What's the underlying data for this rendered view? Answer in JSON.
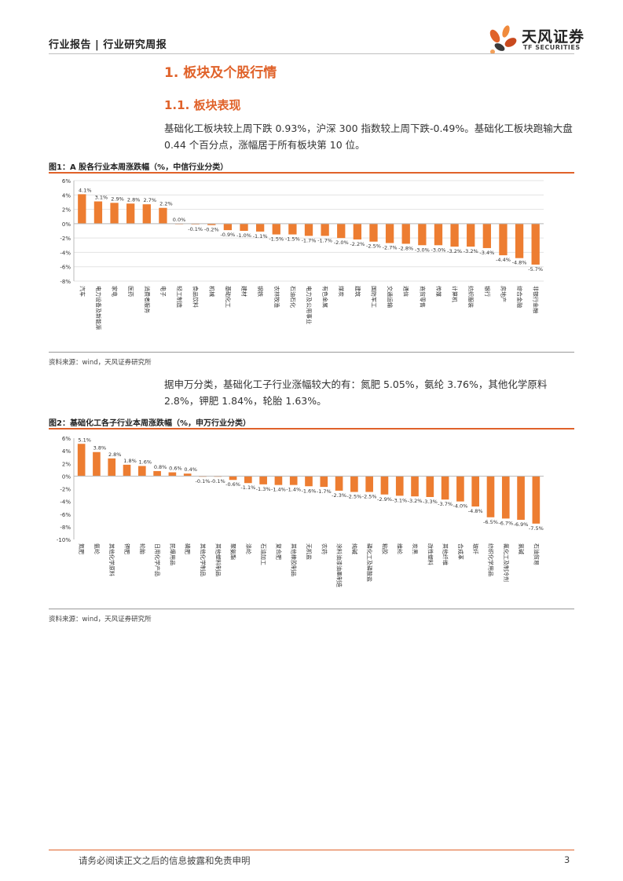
{
  "header": {
    "title": "行业报告 | 行业研究周报",
    "logo_cn": "天风证券",
    "logo_en": "TF SECURITIES"
  },
  "section": {
    "h1": "1. 板块及个股行情",
    "h2": "1.1. 板块表现"
  },
  "paragraphs": {
    "p1": "基础化工板块较上周下跌 0.93%，沪深 300 指数较上周下跌-0.49%。基础化工板块跑输大盘 0.44 个百分点，涨幅居于所有板块第 10 位。",
    "p2": "据申万分类，基础化工子行业涨幅较大的有：氮肥 5.05%，氨纶 3.76%，其他化学原料 2.8%，钾肥 1.84%，轮胎 1.63%。"
  },
  "figures": {
    "fig1_title": "图1：A 股各行业本周涨跌幅（%，中信行业分类）",
    "fig1_source": "资料来源：wind，天风证券研究所",
    "fig2_title": "图2：基础化工各子行业本周涨跌幅（%，申万行业分类）",
    "fig2_source": "资料来源：wind，天风证券研究所"
  },
  "footer": {
    "disclaimer": "请务必阅读正文之后的信息披露和免责申明",
    "page": "3"
  },
  "colors": {
    "accent": "#e0622a",
    "bar": "#ed7d31"
  },
  "chart_data": [
    {
      "type": "bar",
      "ylim": [
        -8,
        6
      ],
      "yticks": [
        "6%",
        "4%",
        "2%",
        "0%",
        "-2%",
        "-4%",
        "-6%",
        "-8%"
      ],
      "grid": true,
      "categories": [
        "汽车",
        "电力设备及新能源",
        "家电",
        "医药",
        "消费者服务",
        "电子",
        "轻工制造",
        "食品饮料",
        "机械",
        "基础化工",
        "建材",
        "钢铁",
        "农林牧渔",
        "石油石化",
        "电力及公用事业",
        "有色金属",
        "煤炭",
        "建筑",
        "国防军工",
        "交通运输",
        "通信",
        "商贸零售",
        "传媒",
        "计算机",
        "纺织服装",
        "银行",
        "房地产",
        "综合金融",
        "非银行金融"
      ],
      "values": [
        4.1,
        3.1,
        2.9,
        2.8,
        2.7,
        2.2,
        0.0,
        -0.1,
        -0.2,
        -0.9,
        -1.0,
        -1.1,
        -1.5,
        -1.5,
        -1.7,
        -1.7,
        -2.0,
        -2.2,
        -2.5,
        -2.7,
        -2.8,
        -3.0,
        -3.0,
        -3.2,
        -3.2,
        -3.4,
        -4.4,
        -4.8,
        -5.7
      ],
      "labels": [
        "4.1%",
        "3.1%",
        "2.9%",
        "2.8%",
        "2.7%",
        "2.2%",
        "0.0%",
        "-0.1%",
        "-0.2%",
        "-0.9%",
        "-1.0%",
        "-1.1%",
        "-1.5%",
        "-1.5%",
        "-1.7%",
        "-1.7%",
        "-2.0%",
        "-2.2%",
        "-2.5%",
        "-2.7%",
        "-2.8%",
        "-3.0%",
        "-3.0%",
        "-3.2%",
        "-3.2%",
        "-3.4%",
        "-4.4%",
        "-4.8%",
        "-5.7%"
      ]
    },
    {
      "type": "bar",
      "ylim": [
        -10,
        6
      ],
      "yticks": [
        "6%",
        "4%",
        "2%",
        "0%",
        "-2%",
        "-4%",
        "-6%",
        "-8%",
        "-10%"
      ],
      "grid": false,
      "categories": [
        "氮肥",
        "氨纶",
        "其他化学原料",
        "钾肥",
        "轮胎",
        "日用化学产品",
        "民爆用品",
        "磷肥",
        "其他化学制品",
        "其他塑料制品",
        "聚氨酯",
        "涤纶",
        "石油加工",
        "复合肥",
        "其他橡胶制品",
        "无机盐",
        "农药",
        "涂料油漆油墨制造",
        "纯碱",
        "磷化工及磷酸盐",
        "粘胶",
        "维纶",
        "炭黑",
        "改性塑料",
        "其他纤维",
        "合成革",
        "玻纤",
        "纺织化学用品",
        "氟化工及制冷剂",
        "氯碱",
        "石油贸易"
      ],
      "values": [
        5.1,
        3.8,
        2.8,
        1.8,
        1.6,
        0.8,
        0.6,
        0.4,
        -0.1,
        -0.1,
        -0.6,
        -1.1,
        -1.3,
        -1.4,
        -1.4,
        -1.6,
        -1.7,
        -2.3,
        -2.5,
        -2.5,
        -2.9,
        -3.1,
        -3.2,
        -3.3,
        -3.7,
        -4.0,
        -4.8,
        -6.5,
        -6.7,
        -6.9,
        -7.5
      ],
      "labels": [
        "5.1%",
        "3.8%",
        "2.8%",
        "1.8%",
        "1.6%",
        "0.8%",
        "0.6%",
        "0.4%",
        "-0.1%",
        "-0.1%",
        "-0.6%",
        "-1.1%",
        "-1.3%",
        "-1.4%",
        "-1.4%",
        "-1.6%",
        "-1.7%",
        "-2.3%",
        "-2.5%",
        "-2.5%",
        "-2.9%",
        "-3.1%",
        "-3.2%",
        "-3.3%",
        "-3.7%",
        "-4.0%",
        "-4.8%",
        "-6.5%",
        "-6.7%",
        "-6.9%",
        "-7.5%"
      ]
    }
  ]
}
